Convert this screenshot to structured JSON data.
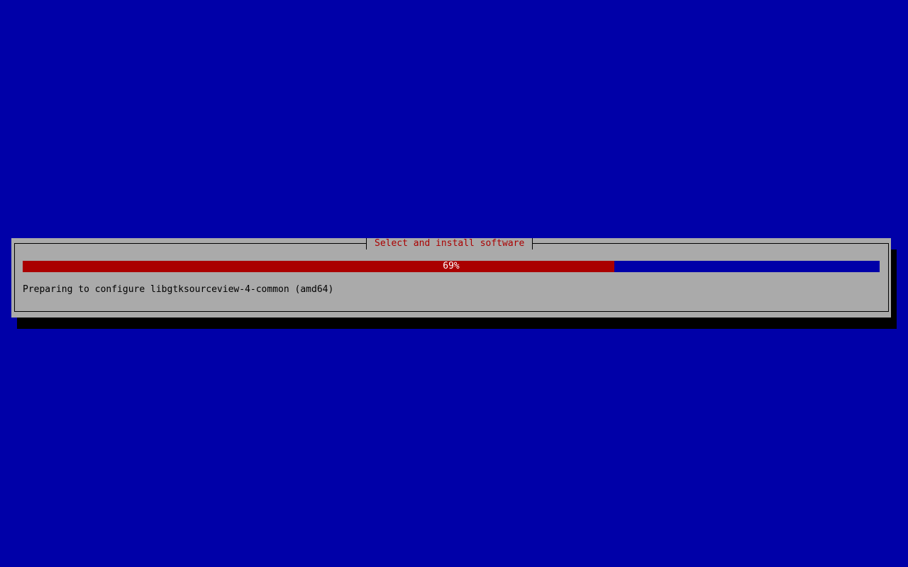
{
  "dialog": {
    "title": "Select and install software",
    "progress_percent": 69,
    "progress_label": "69%",
    "status_text": "Preparing to configure libgtksourceview-4-common (amd64)"
  },
  "colors": {
    "background": "#0000a8",
    "dialog": "#aaaaaa",
    "progress_fill": "#aa0000",
    "title": "#aa0000"
  }
}
